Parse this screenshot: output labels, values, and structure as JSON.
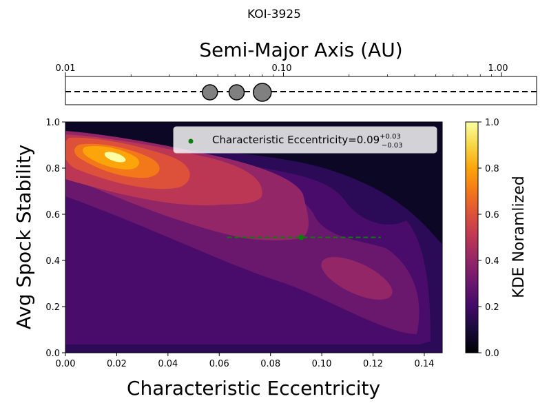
{
  "figure_title": "KOI-3925",
  "chart_data": [
    {
      "type": "scatter",
      "title": "Semi-Major Axis (AU)",
      "xscale": "log",
      "xlim": [
        0.01,
        1.45
      ],
      "x_ticks": [
        0.01,
        0.1,
        1.0
      ],
      "x_tick_labels": [
        "0.01",
        "0.10",
        "1.00"
      ],
      "tick_position": "top",
      "planets": [
        {
          "a": 0.046,
          "size": "small"
        },
        {
          "a": 0.061,
          "size": "small"
        },
        {
          "a": 0.08,
          "size": "large"
        }
      ],
      "line_style": "dashed",
      "marker_color": "#808080"
    },
    {
      "type": "heatmap",
      "xlabel": "Characteristic Eccentricity",
      "ylabel": "Avg Spock Stability",
      "xlim": [
        0.0,
        0.147
      ],
      "ylim": [
        0.0,
        1.0
      ],
      "x_ticks": [
        "0.00",
        "0.02",
        "0.04",
        "0.06",
        "0.08",
        "0.10",
        "0.12",
        "0.14"
      ],
      "y_ticks": [
        "0.0",
        "0.2",
        "0.4",
        "0.6",
        "0.8",
        "1.0"
      ],
      "colormap": "inferno",
      "colorbar": {
        "label": "KDE Noramlized",
        "ticks": [
          "0.0",
          "0.2",
          "0.4",
          "0.6",
          "0.8",
          "1.0"
        ],
        "range": [
          0.0,
          1.0
        ]
      },
      "kde_peaks": [
        {
          "x": 0.019,
          "y": 0.85,
          "level": 1.0
        },
        {
          "x": 0.115,
          "y": 0.33,
          "level": 0.5
        }
      ],
      "estimate": {
        "value": 0.09,
        "err_low": 0.03,
        "err_high": 0.03,
        "x": 0.092,
        "y": 0.5,
        "x_range": [
          0.063,
          0.123
        ],
        "color": "#0a7d0a"
      },
      "legend": {
        "label_prefix": "Characteristic Eccentricity=0.09",
        "sup": "+0.03",
        "sub": "−0.03",
        "position": "upper-right"
      }
    }
  ]
}
